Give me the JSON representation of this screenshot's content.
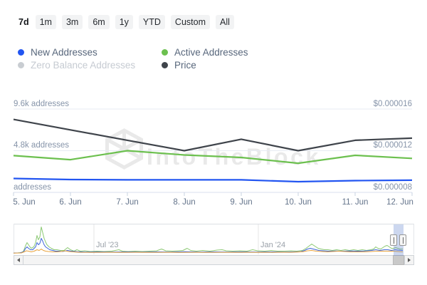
{
  "tabs": {
    "items": [
      {
        "label": "7d",
        "active": true
      },
      {
        "label": "1m",
        "active": false
      },
      {
        "label": "3m",
        "active": false
      },
      {
        "label": "6m",
        "active": false
      },
      {
        "label": "1y",
        "active": false
      },
      {
        "label": "YTD",
        "active": false
      },
      {
        "label": "Custom",
        "active": false
      },
      {
        "label": "All",
        "active": false
      }
    ]
  },
  "legend": {
    "items": [
      {
        "label": "New Addresses",
        "color": "#2255f1",
        "muted": false
      },
      {
        "label": "Active Addresses",
        "color": "#6cc04f",
        "muted": false
      },
      {
        "label": "Zero Balance Addresses",
        "color": "#c9cdd2",
        "muted": true
      },
      {
        "label": "Price",
        "color": "#3f444b",
        "muted": false
      }
    ]
  },
  "watermark": {
    "text": "IntoTheBlock"
  },
  "chart_data": {
    "type": "line",
    "categories": [
      "5. Jun",
      "6. Jun",
      "7. Jun",
      "8. Jun",
      "9. Jun",
      "10. Jun",
      "11. Jun",
      "12. Jun"
    ],
    "series": [
      {
        "name": "New Addresses",
        "axis": "addresses",
        "color": "#2255f1",
        "values": [
          1600,
          1480,
          1440,
          1440,
          1440,
          1230,
          1350,
          1400
        ]
      },
      {
        "name": "Active Addresses",
        "axis": "addresses",
        "color": "#6cc04f",
        "values": [
          4230,
          3770,
          4800,
          4310,
          4020,
          3360,
          4270,
          3910
        ]
      },
      {
        "name": "Price",
        "axis": "price",
        "color": "#3f444b",
        "values": [
          1.5e-05,
          1.4e-05,
          1.3e-05,
          1.2e-05,
          1.31e-05,
          1.2e-05,
          1.3e-05,
          1.32e-05
        ]
      }
    ],
    "y_axis_left": {
      "title": "addresses",
      "ticks": [
        {
          "label": "9.6k addresses",
          "value": 9600
        },
        {
          "label": "4.8k addresses",
          "value": 4800
        },
        {
          "label": "addresses",
          "value": 0
        }
      ]
    },
    "y_axis_right": {
      "title": "price",
      "ticks": [
        {
          "label": "$0.000016",
          "value": 1.6e-05
        },
        {
          "label": "$0.000012",
          "value": 1.2e-05
        },
        {
          "label": "$0.000008",
          "value": 8e-06
        }
      ]
    },
    "navigator": {
      "labels": [
        {
          "text": "Jul '23"
        },
        {
          "text": "Jan '24"
        }
      ],
      "units": "points are [x_px, height_px_above_baseline]",
      "series": [
        {
          "name": "active",
          "color": "#8bc873",
          "points": [
            [
              19,
              0.5
            ],
            [
              25,
              0.6
            ],
            [
              30,
              1
            ],
            [
              33,
              3
            ],
            [
              36,
              11
            ],
            [
              38,
              15
            ],
            [
              40,
              12
            ],
            [
              42,
              9
            ],
            [
              44,
              7
            ],
            [
              46,
              8
            ],
            [
              48,
              10
            ],
            [
              50,
              15
            ],
            [
              52,
              25
            ],
            [
              54,
              19
            ],
            [
              56,
              23
            ],
            [
              58,
              37
            ],
            [
              60,
              29
            ],
            [
              62,
              21
            ],
            [
              64,
              16
            ],
            [
              66,
              12
            ],
            [
              69,
              9
            ],
            [
              72,
              7
            ],
            [
              76,
              5
            ],
            [
              80,
              5
            ],
            [
              85,
              4
            ],
            [
              90,
              4
            ],
            [
              95,
              8
            ],
            [
              99,
              5
            ],
            [
              104,
              3
            ],
            [
              108,
              5
            ],
            [
              113,
              3
            ],
            [
              119,
              3.5
            ],
            [
              127,
              2.5
            ],
            [
              136,
              3
            ],
            [
              146,
              2.5
            ],
            [
              157,
              3
            ],
            [
              167,
              5
            ],
            [
              172,
              3
            ],
            [
              180,
              2.5
            ],
            [
              190,
              3
            ],
            [
              200,
              2.5
            ],
            [
              210,
              3
            ],
            [
              220,
              3.5
            ],
            [
              227,
              6
            ],
            [
              233,
              3.5
            ],
            [
              242,
              3
            ],
            [
              250,
              3.5
            ],
            [
              257,
              4
            ],
            [
              263,
              7
            ],
            [
              268,
              4
            ],
            [
              276,
              3
            ],
            [
              285,
              4
            ],
            [
              295,
              3
            ],
            [
              305,
              4.5
            ],
            [
              312,
              5
            ],
            [
              318,
              3.5
            ],
            [
              327,
              3
            ],
            [
              337,
              3.5
            ],
            [
              347,
              3
            ],
            [
              355,
              5
            ],
            [
              362,
              3.5
            ],
            [
              372,
              3
            ],
            [
              381,
              4
            ],
            [
              390,
              3
            ],
            [
              400,
              3
            ],
            [
              409,
              3.5
            ],
            [
              417,
              3
            ],
            [
              425,
              4
            ],
            [
              430,
              7
            ],
            [
              434,
              10
            ],
            [
              438,
              13
            ],
            [
              441,
              11
            ],
            [
              444,
              9
            ],
            [
              447,
              7
            ],
            [
              451,
              6
            ],
            [
              456,
              5
            ],
            [
              461,
              5
            ],
            [
              467,
              4
            ],
            [
              473,
              5
            ],
            [
              479,
              4
            ],
            [
              485,
              5
            ],
            [
              491,
              4
            ],
            [
              497,
              5
            ],
            [
              503,
              4
            ],
            [
              509,
              5
            ],
            [
              515,
              4
            ],
            [
              521,
              5
            ],
            [
              525,
              6
            ],
            [
              528,
              9
            ],
            [
              531,
              7
            ],
            [
              535,
              6
            ],
            [
              538,
              8
            ],
            [
              541,
              10
            ],
            [
              544,
              11
            ],
            [
              547,
              9
            ],
            [
              550,
              7
            ],
            [
              553,
              7
            ],
            [
              556,
              8
            ],
            [
              559,
              7
            ],
            [
              562,
              6
            ],
            [
              566,
              6
            ]
          ]
        },
        {
          "name": "new",
          "color": "#3c64d8",
          "points": [
            [
              19,
              0.4
            ],
            [
              28,
              0.6
            ],
            [
              33,
              2
            ],
            [
              36,
              7
            ],
            [
              38,
              9
            ],
            [
              40,
              7
            ],
            [
              43,
              5
            ],
            [
              46,
              5
            ],
            [
              48,
              7
            ],
            [
              50,
              9
            ],
            [
              52,
              15
            ],
            [
              54,
              12
            ],
            [
              56,
              14
            ],
            [
              58,
              21
            ],
            [
              60,
              17
            ],
            [
              62,
              12
            ],
            [
              64,
              9
            ],
            [
              67,
              7
            ],
            [
              70,
              5
            ],
            [
              74,
              4
            ],
            [
              78,
              3
            ],
            [
              83,
              3
            ],
            [
              88,
              2.5
            ],
            [
              95,
              4
            ],
            [
              100,
              3
            ],
            [
              108,
              2.2
            ],
            [
              120,
              1.8
            ],
            [
              140,
              2
            ],
            [
              160,
              1.8
            ],
            [
              180,
              2
            ],
            [
              200,
              1.8
            ],
            [
              220,
              2
            ],
            [
              240,
              1.8
            ],
            [
              260,
              2.2
            ],
            [
              280,
              1.8
            ],
            [
              300,
              2
            ],
            [
              320,
              1.8
            ],
            [
              340,
              2
            ],
            [
              360,
              1.8
            ],
            [
              380,
              2
            ],
            [
              400,
              1.8
            ],
            [
              412,
              2
            ],
            [
              422,
              2.2
            ],
            [
              428,
              4
            ],
            [
              432,
              6
            ],
            [
              436,
              7
            ],
            [
              440,
              6
            ],
            [
              444,
              5
            ],
            [
              448,
              4
            ],
            [
              454,
              3.5
            ],
            [
              462,
              3
            ],
            [
              472,
              3.2
            ],
            [
              482,
              3
            ],
            [
              492,
              3.2
            ],
            [
              502,
              3
            ],
            [
              512,
              3.2
            ],
            [
              522,
              4
            ],
            [
              528,
              5
            ],
            [
              534,
              4
            ],
            [
              540,
              5
            ],
            [
              545,
              5
            ],
            [
              550,
              4
            ],
            [
              555,
              5
            ],
            [
              559,
              4.5
            ],
            [
              566,
              4
            ]
          ]
        },
        {
          "name": "price",
          "color": "#e8a33d",
          "points": [
            [
              19,
              0.3
            ],
            [
              30,
              0.5
            ],
            [
              34,
              2
            ],
            [
              37,
              3.5
            ],
            [
              40,
              3
            ],
            [
              44,
              2
            ],
            [
              48,
              3
            ],
            [
              52,
              5
            ],
            [
              55,
              4
            ],
            [
              58,
              6
            ],
            [
              61,
              4
            ],
            [
              64,
              3
            ],
            [
              68,
              2.5
            ],
            [
              74,
              2
            ],
            [
              80,
              2
            ],
            [
              86,
              2.5
            ],
            [
              91,
              3.5
            ],
            [
              96,
              2.5
            ],
            [
              102,
              2
            ],
            [
              112,
              1.4
            ],
            [
              130,
              1.2
            ],
            [
              150,
              1.4
            ],
            [
              170,
              1.2
            ],
            [
              190,
              1.4
            ],
            [
              210,
              1.2
            ],
            [
              230,
              1.4
            ],
            [
              250,
              1.2
            ],
            [
              270,
              1.4
            ],
            [
              290,
              1.2
            ],
            [
              310,
              1.4
            ],
            [
              330,
              1.2
            ],
            [
              350,
              1.4
            ],
            [
              370,
              1.2
            ],
            [
              390,
              1.4
            ],
            [
              408,
              1.4
            ],
            [
              418,
              1.8
            ],
            [
              426,
              2.2
            ],
            [
              432,
              3.5
            ],
            [
              438,
              4
            ],
            [
              444,
              3
            ],
            [
              452,
              2.5
            ],
            [
              460,
              2
            ],
            [
              468,
              2.5
            ],
            [
              476,
              3
            ],
            [
              484,
              2.5
            ],
            [
              492,
              2
            ],
            [
              502,
              2
            ],
            [
              512,
              2
            ],
            [
              522,
              2.5
            ],
            [
              530,
              3
            ],
            [
              538,
              3
            ],
            [
              546,
              3
            ],
            [
              552,
              3
            ],
            [
              558,
              2.5
            ],
            [
              566,
              2
            ]
          ]
        }
      ]
    }
  },
  "theme": {
    "grid_color": "#e7ebf3",
    "bottom_grid_color": "#d8dfec",
    "tick_color": "#c9d3e0",
    "nav_border": "#dcdfe4",
    "nav_side_border": "#e3e6ea",
    "nav_grid": "#e4e4e4",
    "band_color": "rgba(96,130,205,0.32)"
  }
}
